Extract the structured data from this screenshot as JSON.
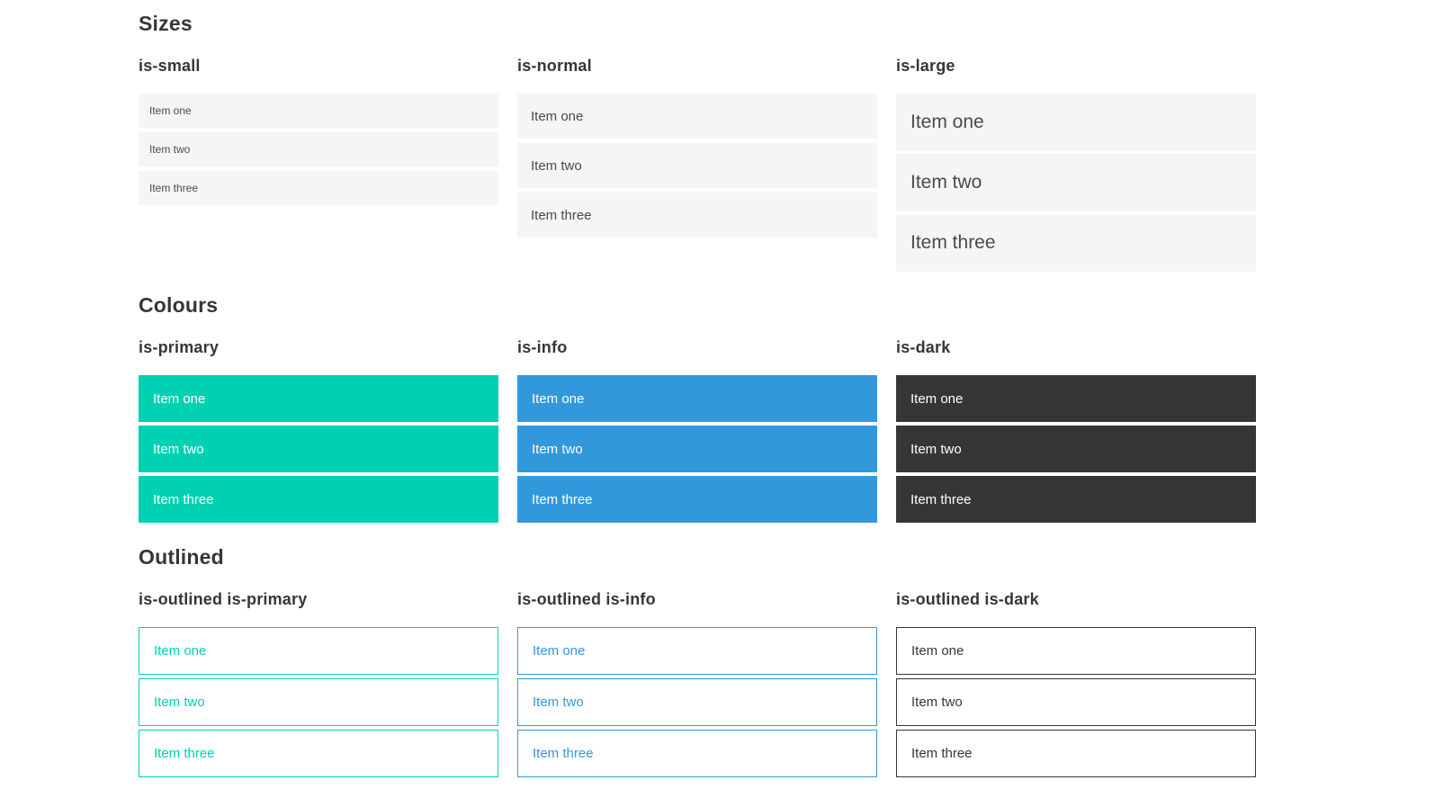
{
  "colors": {
    "primary": "#00d1b2",
    "info": "#3298dc",
    "dark": "#363636",
    "item_bg": "#f5f5f5",
    "item_text": "#4a4a4a",
    "heading_text": "#363636",
    "colored_item_text": "#ffffff",
    "page_background": "#ffffff"
  },
  "sections": [
    {
      "title": "Sizes",
      "groups": [
        {
          "heading": "is-small",
          "items": [
            "Item one",
            "Item two",
            "Item three"
          ]
        },
        {
          "heading": "is-normal",
          "items": [
            "Item one",
            "Item two",
            "Item three"
          ]
        },
        {
          "heading": "is-large",
          "items": [
            "Item one",
            "Item two",
            "Item three"
          ]
        }
      ]
    },
    {
      "title": "Colours",
      "groups": [
        {
          "heading": "is-primary",
          "items": [
            "Item one",
            "Item two",
            "Item three"
          ]
        },
        {
          "heading": "is-info",
          "items": [
            "Item one",
            "Item two",
            "Item three"
          ]
        },
        {
          "heading": "is-dark",
          "items": [
            "Item one",
            "Item two",
            "Item three"
          ]
        }
      ]
    },
    {
      "title": "Outlined",
      "groups": [
        {
          "heading": "is-outlined is-primary",
          "items": [
            "Item one",
            "Item two",
            "Item three"
          ]
        },
        {
          "heading": "is-outlined is-info",
          "items": [
            "Item one",
            "Item two",
            "Item three"
          ]
        },
        {
          "heading": "is-outlined is-dark",
          "items": [
            "Item one",
            "Item two",
            "Item three"
          ]
        }
      ]
    }
  ]
}
